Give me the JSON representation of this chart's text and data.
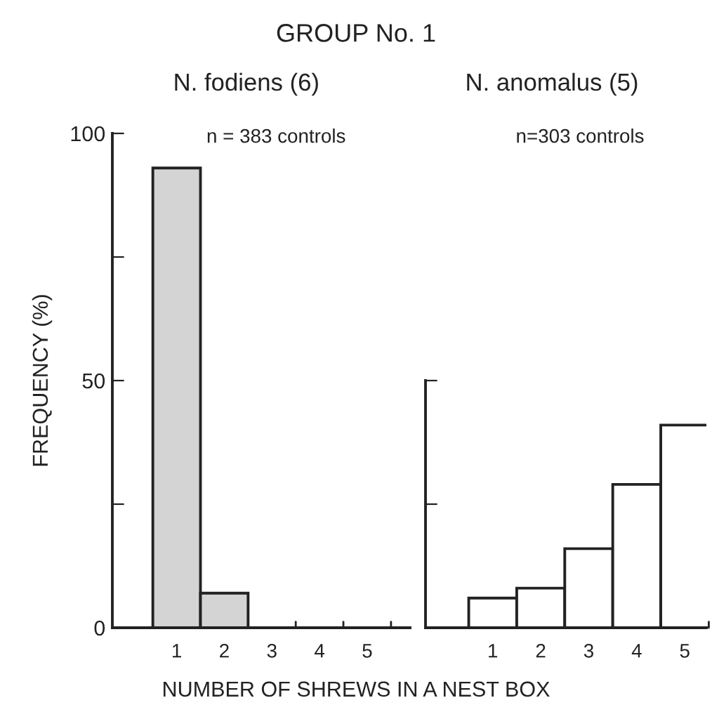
{
  "chart_data": [
    {
      "type": "bar",
      "title": "GROUP No. 1",
      "subtitle": "N. fodiens (6)",
      "xlabel": "NUMBER OF SHREWS IN A NEST BOX",
      "ylabel": "FREQUENCY (%)",
      "annotations": [
        "n = 383 controls"
      ],
      "categories": [
        "1",
        "2",
        "3",
        "4",
        "5"
      ],
      "values": [
        93,
        7,
        0,
        0,
        0
      ],
      "color": "#d4d4d4",
      "ylim": [
        0,
        100
      ],
      "yticks": [
        0,
        {
          "value": 25,
          "label": null
        },
        50,
        {
          "value": 75,
          "label": null
        },
        100
      ],
      "grid": false
    },
    {
      "type": "bar",
      "subtitle": "N. anomalus (5)",
      "annotations": [
        "n=303 controls"
      ],
      "categories": [
        "1",
        "2",
        "3",
        "4",
        "5"
      ],
      "values": [
        6,
        8,
        16,
        29,
        41
      ],
      "color": "#ffffff",
      "ylim": [
        0,
        100
      ],
      "yticks": [
        {
          "value": 0,
          "label": null
        },
        {
          "value": 25,
          "label": null
        },
        {
          "value": 50,
          "label": null
        }
      ],
      "tick_labels": "x",
      "grid": false
    }
  ]
}
